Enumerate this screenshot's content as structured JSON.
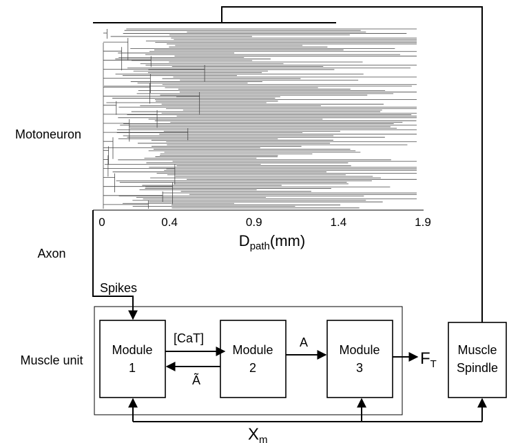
{
  "labels": {
    "motoneuron": "Motoneuron",
    "axon": "Axon",
    "muscle_unit": "Muscle unit",
    "spikes": "Spikes"
  },
  "axis": {
    "ticks": [
      0,
      0.4,
      0.9,
      1.4,
      1.9
    ],
    "title": {
      "main": "D",
      "sub": "path",
      "unit": "(mm)"
    }
  },
  "modules": [
    {
      "line1": "Module",
      "line2": "1"
    },
    {
      "line1": "Module",
      "line2": "2"
    },
    {
      "line1": "Module",
      "line2": "3"
    }
  ],
  "spindle": {
    "line1": "Muscle",
    "line2": "Spindle"
  },
  "signals": {
    "cat": "[CaT]",
    "a": "A",
    "a_tilde": "Ã",
    "force": {
      "main": "F",
      "sub": "T"
    },
    "length": {
      "main": "X",
      "sub": "m"
    }
  }
}
